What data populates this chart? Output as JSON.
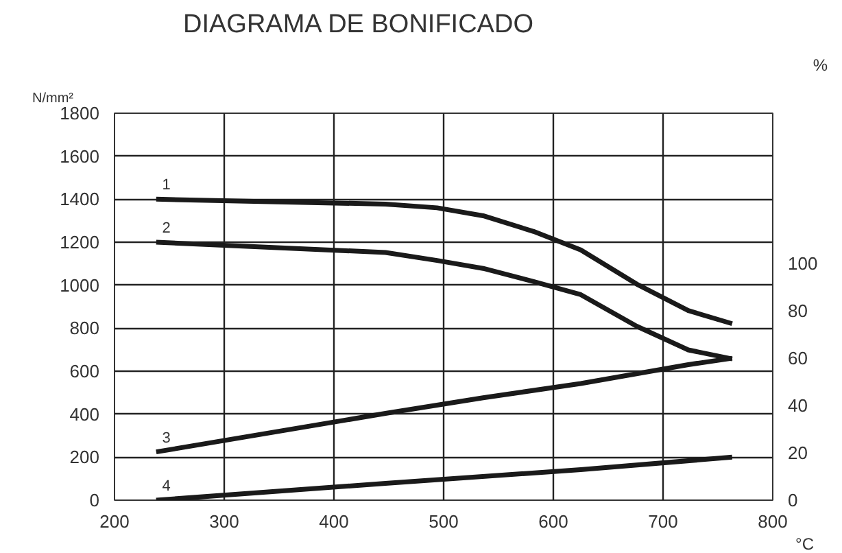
{
  "chart_data": {
    "type": "line",
    "title": "DIAGRAMA DE BONIFICADO",
    "xlabel": "°C",
    "ylabel": "N/mm²",
    "y2label": "%",
    "xlim": [
      200,
      800
    ],
    "xticks": [
      200,
      300,
      400,
      500,
      600,
      700,
      800
    ],
    "ylim": [
      0,
      1800
    ],
    "yticks": [
      0,
      200,
      400,
      600,
      800,
      1000,
      1200,
      1400,
      1600,
      1800
    ],
    "y2lim": [
      0,
      163.6
    ],
    "y2ticks": [
      0,
      20,
      40,
      60,
      80,
      100
    ],
    "grid": true,
    "marker": "none",
    "line_style": "solid",
    "series": [
      {
        "name": "1",
        "color": "#1a1a1a",
        "x": [
          238,
          447,
          494,
          536,
          582,
          625,
          676,
          723,
          763
        ],
        "values": [
          1400,
          1377,
          1360,
          1323,
          1250,
          1164,
          1005,
          882,
          821
        ]
      },
      {
        "name": "2",
        "color": "#1a1a1a",
        "x": [
          238,
          447,
          494,
          536,
          582,
          625,
          676,
          723,
          763
        ],
        "values": [
          1200,
          1152,
          1115,
          1078,
          1017,
          956,
          809,
          699,
          657
        ]
      },
      {
        "name": "3",
        "color": "#1a1a1a",
        "axis": "y2",
        "x": [
          238,
          447,
          536,
          625,
          723,
          763
        ],
        "values": [
          20.4,
          36.7,
          43.3,
          49.3,
          57.3,
          60
        ]
      },
      {
        "name": "4",
        "color": "#1a1a1a",
        "axis": "y2",
        "x": [
          238,
          447,
          625,
          763
        ],
        "values": [
          0,
          7.1,
          12.9,
          18.2
        ]
      }
    ]
  }
}
